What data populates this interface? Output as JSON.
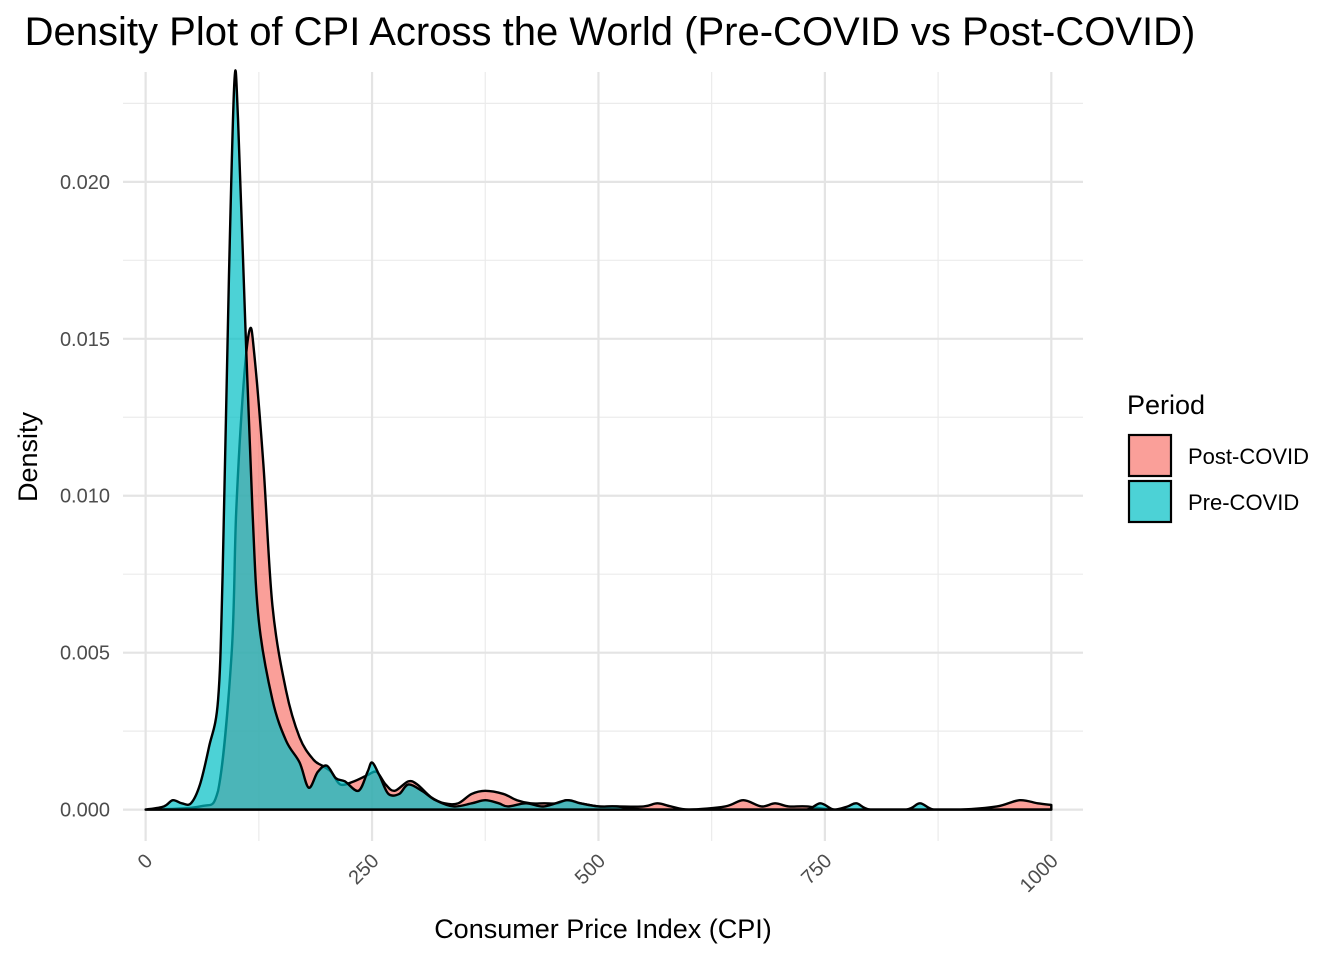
{
  "chart_data": {
    "type": "area",
    "title": "Density Plot of CPI Across the World (Pre-COVID vs Post-COVID)",
    "xlabel": "Consumer Price Index (CPI)",
    "ylabel": "Density",
    "xlim": [
      -25,
      1035
    ],
    "ylim": [
      -0.001,
      0.0235
    ],
    "x_ticks": [
      0,
      250,
      500,
      750,
      1000
    ],
    "x_tick_labels": [
      "0",
      "250",
      "500",
      "750",
      "1000"
    ],
    "y_ticks": [
      0,
      0.005,
      0.01,
      0.015,
      0.02
    ],
    "y_tick_labels": [
      "0.000",
      "0.005",
      "0.010",
      "0.015",
      "0.020"
    ],
    "grid": true,
    "legend": {
      "title": "Period",
      "position": "right",
      "entries": [
        {
          "label": "Post-COVID",
          "color": "#F8766D"
        },
        {
          "label": "Pre-COVID",
          "color": "#00BFC4"
        }
      ]
    },
    "fill_alpha": 0.7,
    "series": [
      {
        "name": "Post-COVID",
        "color": "#F8766D",
        "points": [
          [
            0,
            0
          ],
          [
            60,
            0.0001
          ],
          [
            80,
            0.0006
          ],
          [
            95,
            0.005
          ],
          [
            100,
            0.0095
          ],
          [
            108,
            0.0135
          ],
          [
            115,
            0.0153
          ],
          [
            120,
            0.0145
          ],
          [
            130,
            0.011
          ],
          [
            140,
            0.0065
          ],
          [
            155,
            0.0038
          ],
          [
            170,
            0.0023
          ],
          [
            185,
            0.0016
          ],
          [
            195,
            0.0014
          ],
          [
            205,
            0.0012
          ],
          [
            215,
            0.0008
          ],
          [
            230,
            0.0009
          ],
          [
            245,
            0.0011
          ],
          [
            255,
            0.0012
          ],
          [
            265,
            0.0008
          ],
          [
            275,
            0.0006
          ],
          [
            290,
            0.0009
          ],
          [
            300,
            0.0008
          ],
          [
            315,
            0.0004
          ],
          [
            330,
            0.0002
          ],
          [
            345,
            0.0002
          ],
          [
            360,
            0.0005
          ],
          [
            375,
            0.0006
          ],
          [
            395,
            0.0005
          ],
          [
            410,
            0.0003
          ],
          [
            425,
            0.0002
          ],
          [
            440,
            0.0002
          ],
          [
            455,
            0.0002
          ],
          [
            465,
            0.0003
          ],
          [
            480,
            0.0002
          ],
          [
            500,
            0.0001
          ],
          [
            520,
            0.0001
          ],
          [
            550,
            0.0001
          ],
          [
            565,
            0.0002
          ],
          [
            580,
            0.0001
          ],
          [
            600,
            0
          ],
          [
            640,
            0.0001
          ],
          [
            660,
            0.0003
          ],
          [
            680,
            0.0001
          ],
          [
            695,
            0.0002
          ],
          [
            710,
            0.0001
          ],
          [
            730,
            0.0001
          ],
          [
            760,
            0
          ],
          [
            800,
            0
          ],
          [
            850,
            0
          ],
          [
            900,
            0
          ],
          [
            940,
            0.0001
          ],
          [
            965,
            0.0003
          ],
          [
            985,
            0.0002
          ],
          [
            1000,
            0.00015
          ]
        ]
      },
      {
        "name": "Pre-COVID",
        "color": "#00BFC4",
        "points": [
          [
            0,
            0
          ],
          [
            20,
            0.0001
          ],
          [
            30,
            0.0003
          ],
          [
            40,
            0.0002
          ],
          [
            50,
            0.0002
          ],
          [
            60,
            0.0008
          ],
          [
            70,
            0.002
          ],
          [
            80,
            0.0035
          ],
          [
            85,
            0.0075
          ],
          [
            92,
            0.017
          ],
          [
            98,
            0.0232
          ],
          [
            102,
            0.022
          ],
          [
            110,
            0.0155
          ],
          [
            118,
            0.0095
          ],
          [
            125,
            0.006
          ],
          [
            140,
            0.0035
          ],
          [
            155,
            0.0022
          ],
          [
            170,
            0.0015
          ],
          [
            180,
            0.0007
          ],
          [
            190,
            0.0012
          ],
          [
            200,
            0.0014
          ],
          [
            210,
            0.001
          ],
          [
            220,
            0.0009
          ],
          [
            235,
            0.0006
          ],
          [
            245,
            0.0012
          ],
          [
            250,
            0.0015
          ],
          [
            258,
            0.0011
          ],
          [
            268,
            0.0005
          ],
          [
            280,
            0.0005
          ],
          [
            290,
            0.0008
          ],
          [
            305,
            0.0006
          ],
          [
            320,
            0.0003
          ],
          [
            340,
            0.0001
          ],
          [
            360,
            0.0002
          ],
          [
            375,
            0.0003
          ],
          [
            390,
            0.0002
          ],
          [
            400,
            0.0001
          ],
          [
            420,
            0.0002
          ],
          [
            440,
            0.0001
          ],
          [
            465,
            0.0003
          ],
          [
            480,
            0.0002
          ],
          [
            500,
            0.0001
          ],
          [
            520,
            0.0001
          ],
          [
            550,
            0
          ],
          [
            600,
            0
          ],
          [
            650,
            0
          ],
          [
            700,
            0
          ],
          [
            730,
            0
          ],
          [
            745,
            0.0002
          ],
          [
            760,
            0
          ],
          [
            775,
            0.0001
          ],
          [
            785,
            0.0002
          ],
          [
            800,
            0
          ],
          [
            840,
            0
          ],
          [
            855,
            0.0002
          ],
          [
            870,
            0
          ],
          [
            900,
            0
          ],
          [
            950,
            0
          ],
          [
            1000,
            0
          ]
        ]
      }
    ]
  }
}
